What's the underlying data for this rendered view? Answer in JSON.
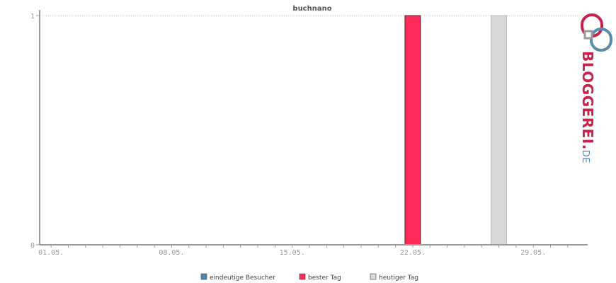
{
  "chart_data": {
    "type": "bar",
    "title": "buchnano",
    "xlabel": "",
    "ylabel": "",
    "ylim": [
      0,
      1
    ],
    "y_ticks": [
      0,
      1
    ],
    "x_range_days": [
      "01.05.",
      "31.05."
    ],
    "x_tick_labels": [
      "01.05.",
      "08.05.",
      "15.05.",
      "22.05.",
      "29.05."
    ],
    "grid": "horizontal dotted at top value",
    "series": [
      {
        "name": "eindeutige Besucher",
        "color": "#4a86b0",
        "points": []
      },
      {
        "name": "bester Tag",
        "color": "#ff2a5a",
        "points": [
          {
            "x": "22.05.",
            "y": 1
          }
        ]
      },
      {
        "name": "heutiger Tag",
        "color": "#d9d9d9",
        "points": [
          {
            "x": "27.05.",
            "y": 1
          }
        ]
      }
    ],
    "legend_position": "bottom"
  },
  "branding": {
    "logo_text": "BLOGGEREI.DE",
    "colors": {
      "logo_red": "#c8234f",
      "logo_blue": "#5a8ba8",
      "logo_gray": "#9b9b9b"
    }
  },
  "colors": {
    "axis": "#9a9a9a",
    "grid": "#bdbdbd",
    "bar_outline": "#333333"
  }
}
